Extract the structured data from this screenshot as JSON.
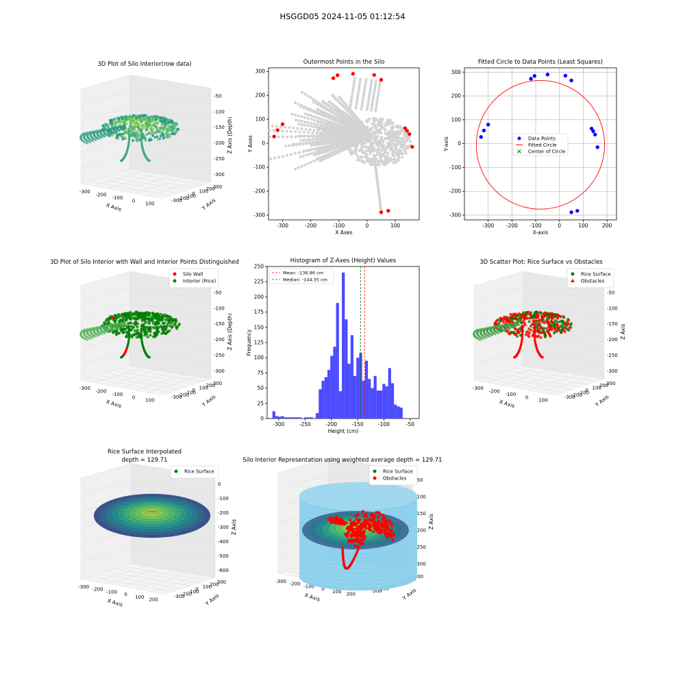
{
  "figure": {
    "suptitle": "HSGGD05 2024-11-05 01:12:54"
  },
  "colors": {
    "wall": "#ff0000",
    "interior": "#008000",
    "gray": "#d3d3d3",
    "blue": "#0000ff",
    "hist": "#4b4bff",
    "cyl": "#87ceeb",
    "viridis": [
      "#440154",
      "#3b528b",
      "#21918c",
      "#5ec962",
      "#fde725"
    ]
  },
  "chart_data": [
    {
      "type": "scatter",
      "projection": "3d",
      "title": "3D Plot of Silo Interior(row data)",
      "xlabel": "X Axis",
      "ylabel": "Y Axis",
      "zlabel": "Z Axis (Depth)",
      "xticks": [
        "-300",
        "-200",
        "-100",
        "0",
        "100"
      ],
      "yticks": [
        "300",
        "200",
        "100",
        "0",
        "-100",
        "-200",
        "-300"
      ],
      "zticks": [
        "-50",
        "-100",
        "-150",
        "-200",
        "-250",
        "-300"
      ],
      "colormap": "viridis"
    },
    {
      "type": "scatter",
      "title": "Outermost Points in the Silo",
      "xlabel": "X Axes",
      "ylabel": "Y Axes",
      "xlim": [
        -350,
        185
      ],
      "ylim": [
        -320,
        315
      ],
      "xticks": [
        -300,
        -200,
        -100,
        0,
        100
      ],
      "yticks": [
        -300,
        -200,
        -100,
        0,
        100,
        200,
        300
      ],
      "series": [
        {
          "color": "#ff0000",
          "points": [
            [
              -330,
              28
            ],
            [
              -318,
              55
            ],
            [
              -300,
              80
            ],
            [
              -120,
              272
            ],
            [
              -105,
              284
            ],
            [
              -50,
              290
            ],
            [
              25,
              285
            ],
            [
              50,
              265
            ],
            [
              135,
              63
            ],
            [
              142,
              52
            ],
            [
              150,
              38
            ],
            [
              160,
              -15
            ],
            [
              50,
              -288
            ],
            [
              75,
              -282
            ]
          ]
        }
      ]
    },
    {
      "type": "scatter",
      "title": "Fitted Circle to Data Points (Least Squares)",
      "xlabel": "X-axis",
      "ylabel": "Y-axis",
      "xlim": [
        -400,
        240
      ],
      "ylim": [
        -320,
        318
      ],
      "xticks": [
        -300,
        -200,
        -100,
        0,
        100,
        200
      ],
      "yticks": [
        -300,
        -200,
        -100,
        0,
        100,
        200,
        300
      ],
      "grid": true,
      "legend": "center",
      "series": [
        {
          "name": "Data Points",
          "marker": "o",
          "color": "#0000ff",
          "points": [
            [
              -330,
              28
            ],
            [
              -318,
              55
            ],
            [
              -300,
              80
            ],
            [
              -120,
              272
            ],
            [
              -105,
              284
            ],
            [
              -50,
              290
            ],
            [
              25,
              285
            ],
            [
              50,
              265
            ],
            [
              135,
              63
            ],
            [
              142,
              52
            ],
            [
              150,
              38
            ],
            [
              160,
              -15
            ],
            [
              50,
              -288
            ],
            [
              75,
              -282
            ]
          ]
        },
        {
          "name": "Fitted Circle",
          "marker": "line",
          "color": "#ff0000",
          "center": [
            -80,
            -5
          ],
          "radius": 270
        },
        {
          "name": "Center of Circle",
          "marker": "x",
          "color": "#008000",
          "points": [
            [
              -80,
              -5
            ]
          ]
        }
      ]
    },
    {
      "type": "scatter",
      "projection": "3d",
      "title": "3D Plot of Silo Interior with Wall and Interior Points Distinguished",
      "xlabel": "X Axis",
      "ylabel": "Y Axis",
      "zlabel": "Z Axis (Depth)",
      "xticks": [
        "-300",
        "-200",
        "-100",
        "0",
        "100"
      ],
      "yticks": [
        "300",
        "200",
        "100",
        "0",
        "-100",
        "-200",
        "-300"
      ],
      "zticks": [
        "-50",
        "-100",
        "-150",
        "-200",
        "-250",
        "-300"
      ],
      "legend": "upper right",
      "series": [
        {
          "name": "Silo Wall",
          "color": "#ff0000"
        },
        {
          "name": "Interior (Rice)",
          "color": "#008000"
        }
      ]
    },
    {
      "type": "bar",
      "title": "Histogram of Z-Axes (Height) Values",
      "xlabel": "Height (cm)",
      "ylabel": "Frequency",
      "xlim": [
        -322,
        -33
      ],
      "ylim": [
        0,
        250
      ],
      "xticks": [
        -300,
        -250,
        -200,
        -150,
        -100,
        -50
      ],
      "yticks": [
        0,
        25,
        50,
        75,
        100,
        125,
        150,
        175,
        200,
        225,
        250
      ],
      "bin_start": -312,
      "bin_width": 5.5,
      "values": [
        12,
        4,
        3,
        4,
        2,
        2,
        2,
        2,
        2,
        2,
        0,
        2,
        2,
        2,
        0,
        9,
        48,
        62,
        68,
        80,
        103,
        118,
        190,
        45,
        240,
        163,
        90,
        137,
        70,
        100,
        108,
        62,
        95,
        65,
        50,
        70,
        46,
        46,
        57,
        53,
        83,
        58,
        23,
        20,
        18
      ],
      "lines": [
        {
          "label": "Mean: -136.86 cm",
          "x": -136.86,
          "color": "#ff0000"
        },
        {
          "label": "Median: -144.35 cm",
          "x": -144.35,
          "color": "#008000"
        }
      ],
      "legend": "upper left"
    },
    {
      "type": "scatter",
      "projection": "3d",
      "title": "3D Scatter Plot: Rice Surface vs Obstacles",
      "zlabel": "Z Axis",
      "xlabel": "X Axis",
      "ylabel": "Y Axis",
      "xticks": [
        "-300",
        "-200",
        "-100",
        "0",
        "100"
      ],
      "yticks": [
        "300",
        "200",
        "100",
        "0",
        "-100",
        "-200",
        "-300"
      ],
      "zticks": [
        "-50",
        "-100",
        "-150",
        "-200",
        "-250",
        "-300"
      ],
      "legend": "upper right",
      "series": [
        {
          "name": "Rice Surface",
          "color": "#008000"
        },
        {
          "name": "Obstacles",
          "color": "#ff0000"
        }
      ]
    },
    {
      "type": "area",
      "projection": "3d",
      "title": "Rice Surface Interpolated",
      "subtitle": "depth = 129.71",
      "xlabel": "X Axis",
      "ylabel": "Y Axis",
      "zlabel": "Z Axis",
      "xticks": [
        "-300",
        "-200",
        "-100",
        "0",
        "100",
        "200"
      ],
      "yticks": [
        "300",
        "200",
        "100",
        "0",
        "-100",
        "-200",
        "-300"
      ],
      "zticks": [
        "0",
        "-100",
        "-200",
        "-300",
        "-400",
        "-500",
        "-600"
      ],
      "legend": "upper right",
      "series": [
        {
          "name": "Rice Surface",
          "color": "#008000"
        }
      ]
    },
    {
      "type": "area",
      "projection": "3d",
      "title": "Silo Interior Representation using weighted average depth = 129.71",
      "xlabel": "X Axis",
      "ylabel": "Y Axis",
      "zlabel": "Z Axis",
      "xticks": [
        "-300",
        "-200",
        "-100",
        "0",
        "100",
        "200"
      ],
      "yticks": [
        "300",
        "200",
        "100",
        "0",
        "-100",
        "-200",
        "-300"
      ],
      "zticks": [
        "-50",
        "-100",
        "-150",
        "-200",
        "-250",
        "-300"
      ],
      "legend": "upper center",
      "series": [
        {
          "name": "Rice Surface",
          "color": "#008000"
        },
        {
          "name": "Obstacles",
          "color": "#ff0000"
        }
      ]
    }
  ]
}
